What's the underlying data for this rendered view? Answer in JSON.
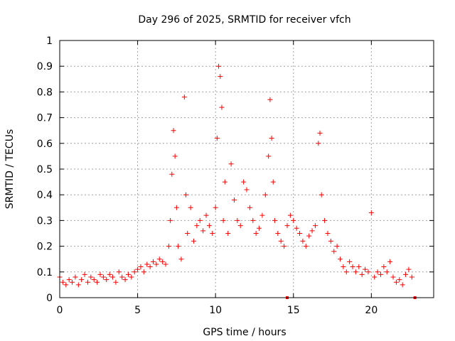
{
  "chart_data": {
    "type": "scatter",
    "title": "Day 296 of 2025, SRMTID for receiver vfch",
    "xlabel": "GPS time / hours",
    "ylabel": "SRMTID / TECUs",
    "xlim": [
      0,
      24
    ],
    "ylim": [
      0,
      1
    ],
    "xticks": [
      "0",
      "5",
      "10",
      "15",
      "20"
    ],
    "yticks": [
      "0",
      "0.1",
      "0.2",
      "0.3",
      "0.4",
      "0.5",
      "0.6",
      "0.7",
      "0.8",
      "0.9",
      "1"
    ],
    "grid": true,
    "marker": "+",
    "color": "#ff0000",
    "series": [
      {
        "name": "SRMTID",
        "x": [
          0.0,
          0.2,
          0.4,
          0.6,
          0.8,
          1.0,
          1.2,
          1.4,
          1.6,
          1.8,
          2.0,
          2.2,
          2.4,
          2.6,
          2.8,
          3.0,
          3.2,
          3.4,
          3.6,
          3.8,
          4.0,
          4.2,
          4.4,
          4.6,
          4.8,
          5.0,
          5.2,
          5.4,
          5.6,
          5.8,
          6.0,
          6.2,
          6.4,
          6.6,
          6.8,
          7.0,
          7.1,
          7.2,
          7.3,
          7.4,
          7.5,
          7.6,
          7.8,
          8.0,
          8.1,
          8.2,
          8.4,
          8.6,
          8.8,
          9.0,
          9.2,
          9.4,
          9.6,
          9.8,
          10.0,
          10.1,
          10.2,
          10.3,
          10.4,
          10.5,
          10.6,
          10.8,
          11.0,
          11.2,
          11.4,
          11.6,
          11.8,
          12.0,
          12.2,
          12.4,
          12.6,
          12.8,
          13.0,
          13.2,
          13.4,
          13.5,
          13.6,
          13.7,
          13.8,
          14.0,
          14.2,
          14.4,
          14.6,
          14.8,
          15.0,
          15.2,
          15.4,
          15.6,
          15.8,
          16.0,
          16.2,
          16.4,
          16.6,
          16.7,
          16.8,
          17.0,
          17.2,
          17.4,
          17.6,
          17.8,
          18.0,
          18.2,
          18.4,
          18.6,
          18.8,
          19.0,
          19.2,
          19.4,
          19.6,
          19.8,
          20.0,
          20.2,
          20.4,
          20.6,
          20.8,
          21.0,
          21.2,
          21.4,
          21.6,
          21.8,
          22.0,
          22.2,
          22.4,
          22.6
        ],
        "y": [
          0.08,
          0.06,
          0.05,
          0.07,
          0.06,
          0.08,
          0.05,
          0.07,
          0.09,
          0.06,
          0.08,
          0.07,
          0.06,
          0.09,
          0.08,
          0.07,
          0.09,
          0.08,
          0.06,
          0.1,
          0.08,
          0.07,
          0.09,
          0.08,
          0.1,
          0.11,
          0.12,
          0.1,
          0.13,
          0.12,
          0.14,
          0.13,
          0.15,
          0.14,
          0.13,
          0.2,
          0.3,
          0.48,
          0.65,
          0.55,
          0.35,
          0.2,
          0.15,
          0.78,
          0.4,
          0.25,
          0.35,
          0.22,
          0.28,
          0.3,
          0.26,
          0.32,
          0.28,
          0.25,
          0.35,
          0.62,
          0.9,
          0.86,
          0.74,
          0.3,
          0.45,
          0.25,
          0.52,
          0.38,
          0.3,
          0.28,
          0.45,
          0.42,
          0.35,
          0.3,
          0.25,
          0.27,
          0.32,
          0.4,
          0.55,
          0.77,
          0.62,
          0.45,
          0.3,
          0.25,
          0.22,
          0.2,
          0.28,
          0.32,
          0.3,
          0.27,
          0.25,
          0.22,
          0.2,
          0.24,
          0.26,
          0.28,
          0.6,
          0.64,
          0.4,
          0.3,
          0.25,
          0.22,
          0.18,
          0.2,
          0.15,
          0.12,
          0.1,
          0.14,
          0.12,
          0.1,
          0.12,
          0.09,
          0.11,
          0.1,
          0.33,
          0.08,
          0.1,
          0.09,
          0.12,
          0.1,
          0.14,
          0.08,
          0.06,
          0.07,
          0.05,
          0.09,
          0.11,
          0.08
        ]
      }
    ],
    "footer_markers_x": [
      14.6,
      22.8
    ]
  }
}
